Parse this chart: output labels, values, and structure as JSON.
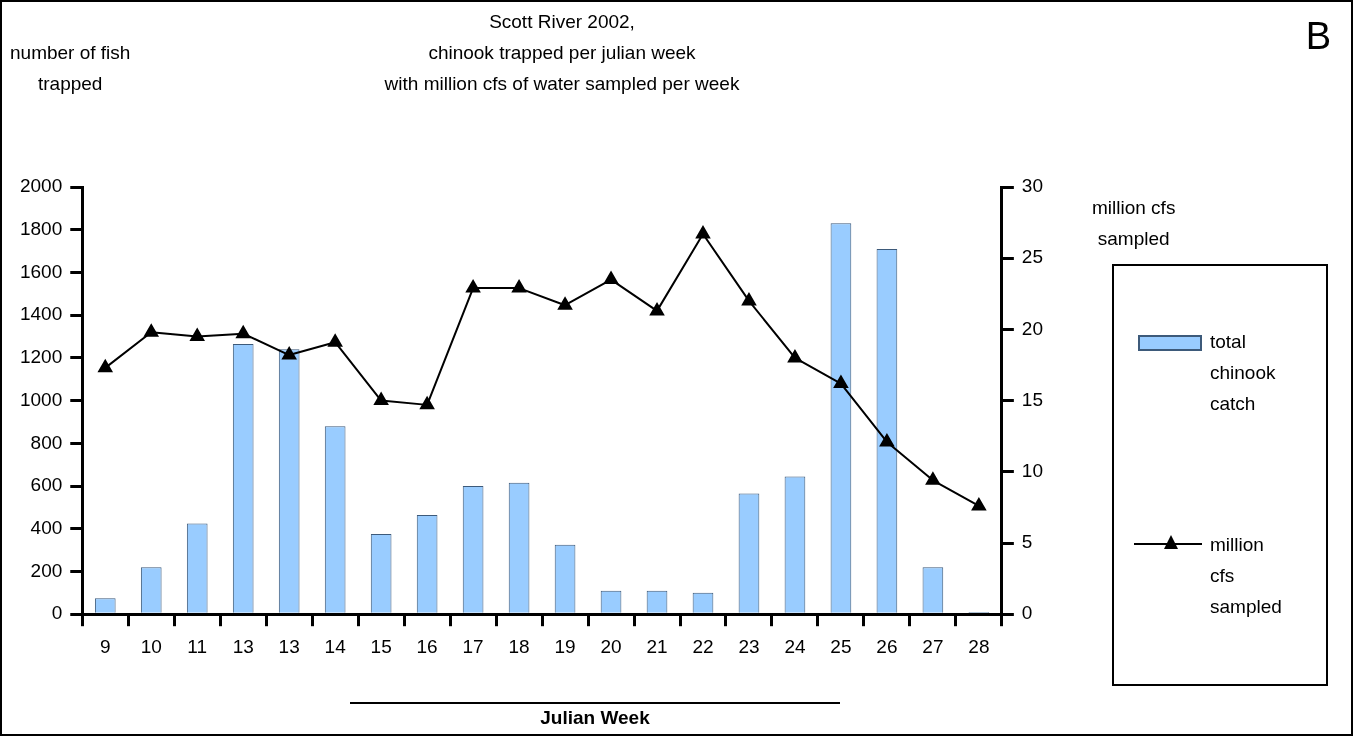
{
  "chart_data": {
    "type": "bar",
    "title": "Scott River 2002,\nchinook trapped per julian week\nwith million cfs of water sampled per week",
    "xlabel": "Julian Week",
    "ylabel": "number of fish\ntrapped",
    "y2label": "million cfs\nsampled",
    "annotations": [
      "B"
    ],
    "categories": [
      "9",
      "10",
      "11",
      "13",
      "13",
      "14",
      "15",
      "16",
      "17",
      "18",
      "19",
      "20",
      "21",
      "22",
      "23",
      "24",
      "25",
      "26",
      "27",
      "28"
    ],
    "series": [
      {
        "name": "total chinook catch",
        "color": "#99ccff",
        "values": [
          75,
          220,
          425,
          1265,
          1240,
          880,
          375,
          465,
          600,
          615,
          325,
          110,
          110,
          100,
          565,
          645,
          1830,
          1710,
          220,
          10
        ]
      },
      {
        "name": "million cfs sampled",
        "type": "line",
        "axis": "y2",
        "color": "#000000",
        "marker": "triangle",
        "values": [
          17.3,
          19.8,
          19.5,
          19.7,
          18.2,
          19.1,
          15,
          14.7,
          22.9,
          22.9,
          21.7,
          23.5,
          21.3,
          26.7,
          22,
          18,
          16.2,
          12.1,
          9.4,
          7.6
        ]
      }
    ],
    "ylim": [
      0,
      2000
    ],
    "yticks": [
      0,
      200,
      400,
      600,
      800,
      1000,
      1200,
      1400,
      1600,
      1800,
      2000
    ],
    "y2lim": [
      0,
      30
    ],
    "y2ticks": [
      0,
      5,
      10,
      15,
      20,
      25,
      30
    ],
    "grid": false,
    "legend": "right"
  }
}
